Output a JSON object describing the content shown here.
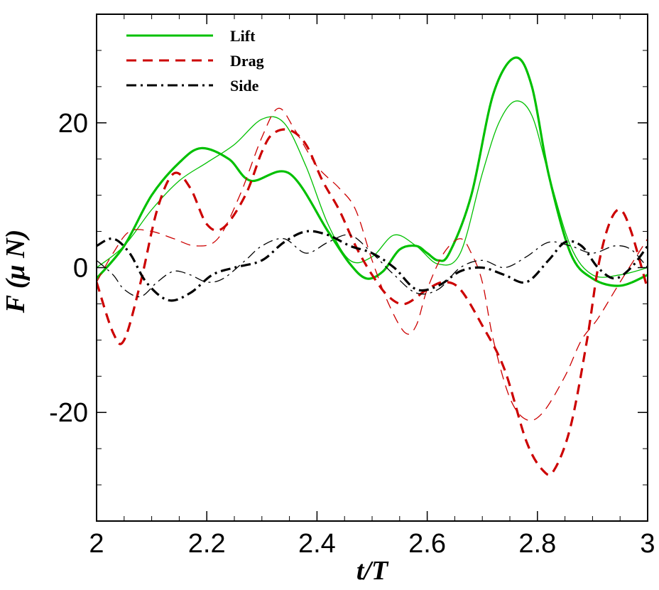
{
  "chart_data": {
    "type": "line",
    "xlabel": "t/T",
    "ylabel": "F (μ N)",
    "xlim": [
      2,
      3
    ],
    "ylim": [
      -35,
      35
    ],
    "xticks": [
      2,
      2.2,
      2.4,
      2.6,
      2.8,
      3
    ],
    "xtick_labels": [
      "2",
      "2.2",
      "2.4",
      "2.6",
      "2.8",
      "3"
    ],
    "yticks": [
      -20,
      0,
      20
    ],
    "ytick_labels": [
      "-20",
      "0",
      "20"
    ],
    "grid": false,
    "legend_position": "top-left",
    "legend": [
      {
        "label": "Lift",
        "color": "#00c000",
        "dash": "solid"
      },
      {
        "label": "Drag",
        "color": "#cc0000",
        "dash": "dashed"
      },
      {
        "label": "Side",
        "color": "#000000",
        "dash": "dashdot"
      }
    ],
    "series": [
      {
        "name": "Lift",
        "variant": "thick",
        "color": "#00c000",
        "dash": "solid",
        "x": [
          2.0,
          2.05,
          2.1,
          2.15,
          2.19,
          2.24,
          2.28,
          2.35,
          2.42,
          2.46,
          2.49,
          2.52,
          2.55,
          2.58,
          2.6,
          2.62,
          2.64,
          2.68,
          2.72,
          2.76,
          2.79,
          2.82,
          2.86,
          2.9,
          2.95,
          3.0
        ],
        "y": [
          -1.5,
          3,
          10,
          14.5,
          16.5,
          15,
          12,
          13,
          5,
          0.5,
          -1.5,
          -0.5,
          2.5,
          3,
          2,
          1,
          2,
          10,
          24,
          29,
          25,
          13,
          2,
          -1.5,
          -2.5,
          -1
        ]
      },
      {
        "name": "Lift",
        "variant": "thin",
        "color": "#00c000",
        "dash": "solid",
        "x": [
          2.0,
          2.05,
          2.1,
          2.15,
          2.2,
          2.25,
          2.3,
          2.34,
          2.38,
          2.42,
          2.46,
          2.5,
          2.54,
          2.58,
          2.62,
          2.66,
          2.7,
          2.73,
          2.76,
          2.79,
          2.82,
          2.86,
          2.9,
          2.95,
          3.0
        ],
        "y": [
          0,
          3,
          8,
          12,
          14.5,
          17,
          20.5,
          20,
          14,
          6,
          1,
          1.5,
          4.5,
          3,
          0.5,
          2,
          13,
          20,
          23,
          21,
          13,
          3,
          -1,
          -1,
          0
        ]
      },
      {
        "name": "Drag",
        "variant": "thick",
        "color": "#cc0000",
        "dash": "dashed",
        "x": [
          2.0,
          2.03,
          2.05,
          2.08,
          2.11,
          2.14,
          2.17,
          2.2,
          2.23,
          2.27,
          2.3,
          2.32,
          2.35,
          2.38,
          2.41,
          2.44,
          2.47,
          2.5,
          2.53,
          2.56,
          2.6,
          2.63,
          2.66,
          2.7,
          2.74,
          2.78,
          2.81,
          2.83,
          2.86,
          2.89,
          2.91,
          2.93,
          2.95,
          2.97,
          3.0
        ],
        "y": [
          -2,
          -9,
          -10,
          -2,
          8,
          13,
          11,
          6,
          5.5,
          10,
          16,
          18.5,
          19,
          17,
          12,
          8,
          3,
          -1,
          -4,
          -5,
          -3,
          -2,
          -3,
          -8,
          -14,
          -24,
          -28,
          -28,
          -22,
          -10,
          0,
          6,
          8,
          5,
          -3
        ]
      },
      {
        "name": "Drag",
        "variant": "thin",
        "color": "#cc0000",
        "dash": "dashed",
        "x": [
          2.0,
          2.03,
          2.06,
          2.1,
          2.14,
          2.18,
          2.22,
          2.26,
          2.3,
          2.33,
          2.36,
          2.4,
          2.44,
          2.47,
          2.5,
          2.53,
          2.56,
          2.58,
          2.6,
          2.63,
          2.66,
          2.68,
          2.7,
          2.72,
          2.75,
          2.78,
          2.81,
          2.85,
          2.88,
          2.91,
          2.95,
          3.0
        ],
        "y": [
          -2,
          2,
          5,
          5,
          4,
          3,
          4,
          10,
          18,
          22,
          19,
          14,
          11,
          8,
          1,
          -5,
          -9,
          -8,
          -3,
          2,
          4,
          2,
          -2,
          -10,
          -18,
          -21,
          -20,
          -15,
          -10,
          -7,
          -2,
          4
        ]
      },
      {
        "name": "Side",
        "variant": "thick",
        "color": "#000000",
        "dash": "dashdot",
        "x": [
          2.0,
          2.03,
          2.06,
          2.09,
          2.13,
          2.17,
          2.21,
          2.25,
          2.3,
          2.34,
          2.38,
          2.42,
          2.46,
          2.5,
          2.54,
          2.58,
          2.62,
          2.66,
          2.7,
          2.74,
          2.78,
          2.82,
          2.85,
          2.88,
          2.91,
          2.94,
          2.97,
          3.0
        ],
        "y": [
          3,
          4,
          2,
          -2,
          -4.5,
          -3.5,
          -1,
          0,
          1,
          3.5,
          5,
          4.5,
          3,
          2,
          0,
          -3,
          -2.5,
          -0.5,
          0,
          -1,
          -2,
          1,
          3.5,
          3,
          0,
          -1.5,
          0,
          3
        ]
      },
      {
        "name": "Side",
        "variant": "thin",
        "color": "#000000",
        "dash": "dashdot",
        "x": [
          2.0,
          2.03,
          2.05,
          2.08,
          2.11,
          2.14,
          2.17,
          2.2,
          2.23,
          2.27,
          2.3,
          2.34,
          2.38,
          2.42,
          2.46,
          2.5,
          2.54,
          2.58,
          2.62,
          2.66,
          2.7,
          2.74,
          2.78,
          2.82,
          2.86,
          2.9,
          2.94,
          2.97,
          3.0
        ],
        "y": [
          1,
          -1,
          -3,
          -4,
          -2,
          -0.5,
          -1,
          -2,
          -1.5,
          1,
          3,
          4,
          2,
          3.5,
          4.5,
          2,
          -1,
          -3.5,
          -3,
          0,
          1,
          0,
          1.5,
          3.5,
          3,
          2,
          3,
          2.5,
          0
        ]
      }
    ]
  }
}
